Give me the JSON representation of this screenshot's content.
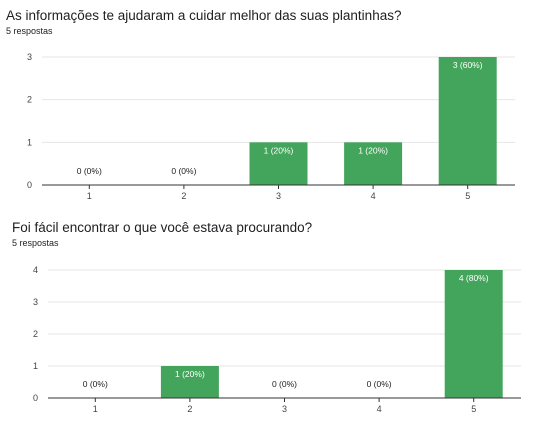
{
  "colors": {
    "bar": "#43a55b",
    "grid": "#e6e6e6",
    "axis": "#333333"
  },
  "questions": [
    {
      "title": "As informações te ajudaram a cuidar melhor das suas plantinhas?",
      "subtitle": "5 respostas",
      "chart_data": {
        "type": "bar",
        "categories": [
          "1",
          "2",
          "3",
          "4",
          "5"
        ],
        "values": [
          0,
          0,
          1,
          1,
          3
        ],
        "data_labels": [
          "0 (0%)",
          "0 (0%)",
          "1 (20%)",
          "1 (20%)",
          "3 (60%)"
        ],
        "yticks": [
          "0",
          "1",
          "2",
          "3"
        ],
        "ylim": [
          0,
          3
        ],
        "grid": true
      }
    },
    {
      "title": "Foi fácil encontrar o que você estava procurando?",
      "subtitle": "5 respostas",
      "chart_data": {
        "type": "bar",
        "categories": [
          "1",
          "2",
          "3",
          "4",
          "5"
        ],
        "values": [
          0,
          1,
          0,
          0,
          4
        ],
        "data_labels": [
          "0 (0%)",
          "1 (20%)",
          "0 (0%)",
          "0 (0%)",
          "4 (80%)"
        ],
        "yticks": [
          "0",
          "1",
          "2",
          "3",
          "4"
        ],
        "ylim": [
          0,
          4
        ],
        "grid": true
      }
    }
  ]
}
